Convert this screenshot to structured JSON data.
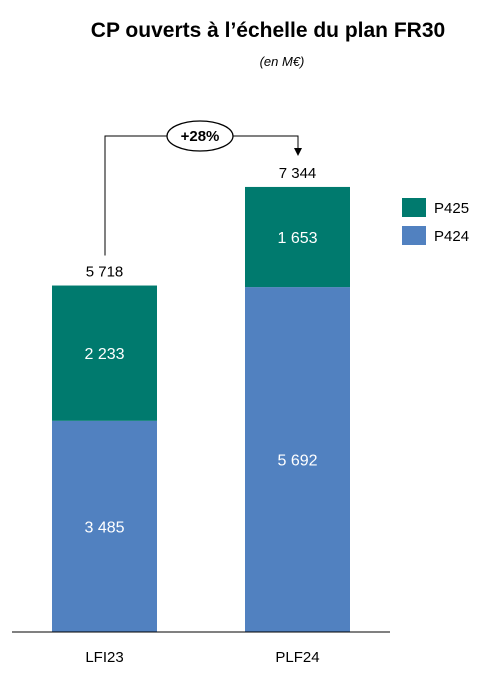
{
  "chart_data": {
    "type": "bar",
    "stacked": true,
    "title": "CP ouverts à l’échelle du plan FR30",
    "subtitle": "(en M€)",
    "categories": [
      "LFI23",
      "PLF24"
    ],
    "series": [
      {
        "name": "P424",
        "values": [
          3485,
          5692
        ],
        "labels": [
          "3 485",
          "5 692"
        ],
        "color": "#5181C0"
      },
      {
        "name": "P425",
        "values": [
          2233,
          1653
        ],
        "labels": [
          "2 233",
          "1 653"
        ],
        "color": "#007A6E"
      }
    ],
    "totals": [
      5718,
      7344
    ],
    "total_labels": [
      "5 718",
      "7 344"
    ],
    "ylim": [
      0,
      8000
    ],
    "grid": false,
    "legend_position": "right",
    "annotation": {
      "text": "+28%",
      "from": "LFI23",
      "to": "PLF24"
    }
  }
}
